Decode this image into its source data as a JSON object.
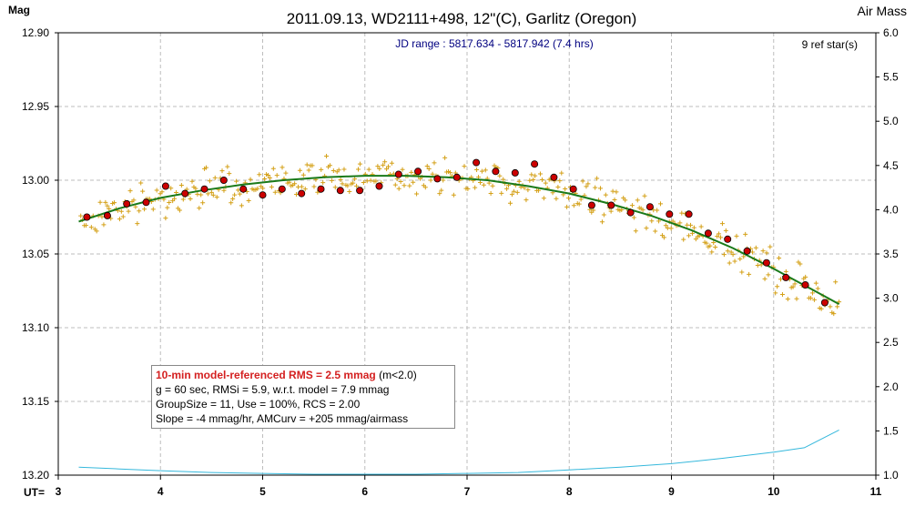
{
  "chart_data": {
    "type": "scatter",
    "title": "2011.09.13, WD2111+498, 12\"(C), Garlitz (Oregon)",
    "subtitle": "JD range : 5817.634 - 5817.942 (7.4 hrs)",
    "ref_stars": "9 ref star(s)",
    "ylabel": "Mag",
    "y2label": "Air Mass",
    "xlabel": "UT=",
    "xlim": [
      3,
      11
    ],
    "ylim": [
      13.2,
      12.9
    ],
    "y2lim": [
      1.0,
      6.0
    ],
    "x_ticks": [
      "3",
      "4",
      "5",
      "6",
      "7",
      "8",
      "9",
      "10",
      "11"
    ],
    "y_ticks": [
      "12.90",
      "12.95",
      "13.00",
      "13.05",
      "13.10",
      "13.15",
      "13.20"
    ],
    "y2_ticks": [
      "6.0",
      "5.5",
      "5.0",
      "4.5",
      "4.0",
      "3.5",
      "3.0",
      "2.5",
      "2.0",
      "1.5",
      "1.0"
    ],
    "grid": true,
    "colors": {
      "raw_points": "#d4a017",
      "group_means": "#cc0000",
      "model": "#1a7a1a",
      "airmass": "#35b8dc",
      "subtitle_text": "#000080",
      "rms_text": "#d42020"
    },
    "series": [
      {
        "marker": "dot",
        "x": [
          3.28,
          3.48,
          3.67,
          3.86,
          4.05,
          4.24,
          4.43,
          4.62,
          4.81,
          5.0,
          5.19,
          5.38,
          5.57,
          5.76,
          5.95,
          6.14,
          6.33,
          6.52,
          6.71,
          6.9,
          7.09,
          7.28,
          7.47,
          7.66,
          7.85,
          8.04,
          8.22,
          8.41,
          8.6,
          8.79,
          8.98,
          9.17,
          9.36,
          9.55,
          9.74,
          9.93,
          10.12,
          10.31,
          10.5
        ],
        "values": [
          13.025,
          13.024,
          13.016,
          13.015,
          13.004,
          13.009,
          13.006,
          13.0,
          13.006,
          13.01,
          13.006,
          13.009,
          13.006,
          13.007,
          13.007,
          13.004,
          12.996,
          12.994,
          12.999,
          12.998,
          12.988,
          12.994,
          12.995,
          12.989,
          12.998,
          13.006,
          13.017,
          13.017,
          13.022,
          13.018,
          13.023,
          13.023,
          13.036,
          13.04,
          13.048,
          13.056,
          13.066,
          13.071,
          13.083
        ]
      },
      {
        "marker": "line",
        "x": [
          3.2,
          3.6,
          4.0,
          4.4,
          4.8,
          5.2,
          5.6,
          6.0,
          6.4,
          6.8,
          7.2,
          7.6,
          8.0,
          8.4,
          8.8,
          9.2,
          9.6,
          10.0,
          10.4,
          10.64
        ],
        "values": [
          13.028,
          13.019,
          13.012,
          13.007,
          13.003,
          13.0,
          12.998,
          12.997,
          12.997,
          12.998,
          13.0,
          13.004,
          13.009,
          13.016,
          13.024,
          13.034,
          13.046,
          13.06,
          13.075,
          13.084
        ]
      },
      {
        "marker": "line",
        "axis": "right",
        "x": [
          3.2,
          3.6,
          4.0,
          4.5,
          5.0,
          5.5,
          6.0,
          6.5,
          7.0,
          7.5,
          8.0,
          8.5,
          9.0,
          9.5,
          10.0,
          10.3,
          10.64
        ],
        "values": [
          1.09,
          1.07,
          1.05,
          1.03,
          1.02,
          1.01,
          1.01,
          1.01,
          1.02,
          1.03,
          1.06,
          1.09,
          1.13,
          1.19,
          1.26,
          1.31,
          1.51
        ]
      }
    ]
  },
  "info_box": {
    "rms_line": "10-min model-referenced RMS = 2.5 mmag",
    "rms_cond": "(m<2.0)",
    "line2": "g = 60 sec, RMSi = 5.9, w.r.t. model = 7.9 mmag",
    "line3": "GroupSize = 11, Use = 100%, RCS = 2.00",
    "line4": "Slope = -4 mmag/hr, AMCurv = +205 mmag/airmass"
  }
}
